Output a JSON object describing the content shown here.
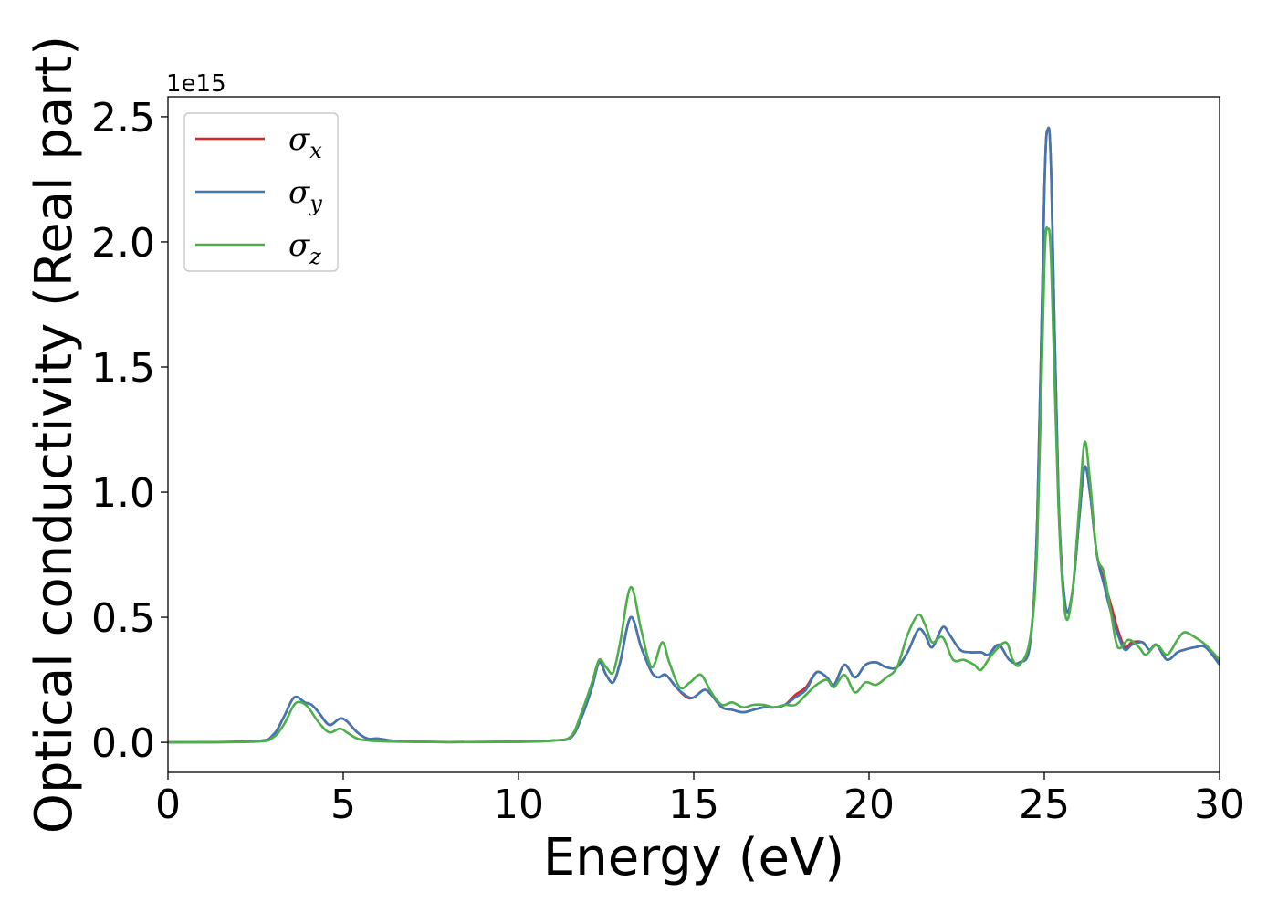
{
  "chart_data": {
    "type": "line",
    "xlabel": "Energy (eV)",
    "ylabel": "Optical conductivity (Real part)",
    "y_offset_label": "1e15",
    "xlim": [
      0,
      30
    ],
    "ylim": [
      -0.12,
      2.58
    ],
    "x_ticks": [
      0,
      5,
      10,
      15,
      20,
      25,
      30
    ],
    "x_tick_labels": [
      "0",
      "5",
      "10",
      "15",
      "20",
      "25",
      "30"
    ],
    "y_ticks": [
      0.0,
      0.5,
      1.0,
      1.5,
      2.0,
      2.5
    ],
    "y_tick_labels": [
      "0.0",
      "0.5",
      "1.0",
      "1.5",
      "2.0",
      "2.5"
    ],
    "grid": false,
    "legend_position": "upper-left",
    "series": [
      {
        "name": "σx",
        "symbol": "σ",
        "subscript": "x",
        "color": "#d62728",
        "points": [
          [
            0,
            0
          ],
          [
            2.5,
            0.005
          ],
          [
            3.0,
            0.03
          ],
          [
            3.3,
            0.1
          ],
          [
            3.6,
            0.18
          ],
          [
            3.9,
            0.16
          ],
          [
            4.1,
            0.15
          ],
          [
            4.3,
            0.12
          ],
          [
            4.6,
            0.07
          ],
          [
            4.9,
            0.095
          ],
          [
            5.1,
            0.085
          ],
          [
            5.4,
            0.04
          ],
          [
            5.7,
            0.015
          ],
          [
            6.0,
            0.015
          ],
          [
            6.5,
            0.005
          ],
          [
            7,
            0.003
          ],
          [
            8,
            0.001
          ],
          [
            10,
            0.003
          ],
          [
            11,
            0.008
          ],
          [
            11.5,
            0.02
          ],
          [
            11.8,
            0.1
          ],
          [
            12.1,
            0.22
          ],
          [
            12.3,
            0.32
          ],
          [
            12.5,
            0.27
          ],
          [
            12.7,
            0.24
          ],
          [
            12.9,
            0.32
          ],
          [
            13.2,
            0.5
          ],
          [
            13.5,
            0.38
          ],
          [
            13.8,
            0.28
          ],
          [
            14.0,
            0.26
          ],
          [
            14.2,
            0.27
          ],
          [
            14.5,
            0.22
          ],
          [
            14.8,
            0.18
          ],
          [
            15.0,
            0.18
          ],
          [
            15.3,
            0.21
          ],
          [
            15.5,
            0.19
          ],
          [
            15.8,
            0.14
          ],
          [
            16.1,
            0.13
          ],
          [
            16.4,
            0.12
          ],
          [
            16.7,
            0.13
          ],
          [
            17.0,
            0.14
          ],
          [
            17.3,
            0.14
          ],
          [
            17.6,
            0.15
          ],
          [
            17.9,
            0.19
          ],
          [
            18.2,
            0.22
          ],
          [
            18.5,
            0.28
          ],
          [
            18.8,
            0.26
          ],
          [
            19.0,
            0.23
          ],
          [
            19.3,
            0.31
          ],
          [
            19.6,
            0.26
          ],
          [
            19.9,
            0.31
          ],
          [
            20.2,
            0.32
          ],
          [
            20.5,
            0.3
          ],
          [
            20.8,
            0.3
          ],
          [
            21.1,
            0.36
          ],
          [
            21.4,
            0.45
          ],
          [
            21.6,
            0.43
          ],
          [
            21.8,
            0.38
          ],
          [
            22.1,
            0.46
          ],
          [
            22.3,
            0.43
          ],
          [
            22.6,
            0.37
          ],
          [
            22.9,
            0.36
          ],
          [
            23.2,
            0.36
          ],
          [
            23.4,
            0.35
          ],
          [
            23.7,
            0.39
          ],
          [
            24.0,
            0.33
          ],
          [
            24.3,
            0.32
          ],
          [
            24.6,
            0.4
          ],
          [
            24.8,
            0.9
          ],
          [
            25.0,
            2.2
          ],
          [
            25.1,
            2.45
          ],
          [
            25.2,
            2.25
          ],
          [
            25.4,
            1.0
          ],
          [
            25.6,
            0.55
          ],
          [
            25.8,
            0.6
          ],
          [
            26.0,
            0.9
          ],
          [
            26.15,
            1.1
          ],
          [
            26.3,
            1.0
          ],
          [
            26.5,
            0.75
          ],
          [
            26.7,
            0.65
          ],
          [
            26.9,
            0.55
          ],
          [
            27.1,
            0.45
          ],
          [
            27.3,
            0.38
          ],
          [
            27.5,
            0.4
          ],
          [
            27.8,
            0.4
          ],
          [
            28.0,
            0.37
          ],
          [
            28.2,
            0.39
          ],
          [
            28.5,
            0.33
          ],
          [
            28.8,
            0.36
          ],
          [
            29.0,
            0.37
          ],
          [
            29.3,
            0.38
          ],
          [
            29.6,
            0.38
          ],
          [
            30.0,
            0.32
          ]
        ]
      },
      {
        "name": "σy",
        "symbol": "σ",
        "subscript": "y",
        "color": "#3f77b2",
        "points": [
          [
            0,
            0
          ],
          [
            2.5,
            0.005
          ],
          [
            3.0,
            0.03
          ],
          [
            3.3,
            0.1
          ],
          [
            3.6,
            0.18
          ],
          [
            3.9,
            0.16
          ],
          [
            4.1,
            0.15
          ],
          [
            4.3,
            0.12
          ],
          [
            4.6,
            0.07
          ],
          [
            4.9,
            0.095
          ],
          [
            5.1,
            0.085
          ],
          [
            5.4,
            0.04
          ],
          [
            5.7,
            0.015
          ],
          [
            6.0,
            0.015
          ],
          [
            6.5,
            0.005
          ],
          [
            7,
            0.003
          ],
          [
            8,
            0.001
          ],
          [
            10,
            0.003
          ],
          [
            11,
            0.008
          ],
          [
            11.5,
            0.02
          ],
          [
            11.8,
            0.1
          ],
          [
            12.1,
            0.22
          ],
          [
            12.3,
            0.32
          ],
          [
            12.5,
            0.27
          ],
          [
            12.7,
            0.24
          ],
          [
            12.9,
            0.32
          ],
          [
            13.2,
            0.5
          ],
          [
            13.5,
            0.38
          ],
          [
            13.8,
            0.28
          ],
          [
            14.0,
            0.26
          ],
          [
            14.2,
            0.27
          ],
          [
            14.5,
            0.22
          ],
          [
            14.8,
            0.185
          ],
          [
            15.0,
            0.18
          ],
          [
            15.3,
            0.21
          ],
          [
            15.5,
            0.19
          ],
          [
            15.8,
            0.14
          ],
          [
            16.1,
            0.13
          ],
          [
            16.4,
            0.12
          ],
          [
            16.7,
            0.13
          ],
          [
            17.0,
            0.14
          ],
          [
            17.3,
            0.14
          ],
          [
            17.6,
            0.15
          ],
          [
            17.9,
            0.18
          ],
          [
            18.2,
            0.21
          ],
          [
            18.5,
            0.28
          ],
          [
            18.8,
            0.26
          ],
          [
            19.0,
            0.23
          ],
          [
            19.3,
            0.31
          ],
          [
            19.6,
            0.26
          ],
          [
            19.9,
            0.31
          ],
          [
            20.2,
            0.32
          ],
          [
            20.5,
            0.3
          ],
          [
            20.8,
            0.3
          ],
          [
            21.1,
            0.36
          ],
          [
            21.4,
            0.45
          ],
          [
            21.6,
            0.43
          ],
          [
            21.8,
            0.38
          ],
          [
            22.1,
            0.46
          ],
          [
            22.3,
            0.43
          ],
          [
            22.6,
            0.37
          ],
          [
            22.9,
            0.36
          ],
          [
            23.2,
            0.36
          ],
          [
            23.4,
            0.35
          ],
          [
            23.7,
            0.39
          ],
          [
            24.0,
            0.33
          ],
          [
            24.3,
            0.32
          ],
          [
            24.6,
            0.4
          ],
          [
            24.8,
            0.9
          ],
          [
            25.0,
            2.2
          ],
          [
            25.1,
            2.45
          ],
          [
            25.2,
            2.25
          ],
          [
            25.4,
            1.0
          ],
          [
            25.6,
            0.55
          ],
          [
            25.8,
            0.6
          ],
          [
            26.0,
            0.9
          ],
          [
            26.15,
            1.1
          ],
          [
            26.3,
            1.0
          ],
          [
            26.5,
            0.75
          ],
          [
            26.7,
            0.63
          ],
          [
            26.9,
            0.52
          ],
          [
            27.1,
            0.43
          ],
          [
            27.3,
            0.37
          ],
          [
            27.5,
            0.39
          ],
          [
            27.8,
            0.4
          ],
          [
            28.0,
            0.37
          ],
          [
            28.2,
            0.39
          ],
          [
            28.5,
            0.33
          ],
          [
            28.8,
            0.36
          ],
          [
            29.0,
            0.37
          ],
          [
            29.3,
            0.38
          ],
          [
            29.6,
            0.38
          ],
          [
            30.0,
            0.31
          ]
        ]
      },
      {
        "name": "σz",
        "symbol": "σ",
        "subscript": "z",
        "color": "#4daf4a",
        "points": [
          [
            0,
            0
          ],
          [
            2.5,
            0.003
          ],
          [
            3.0,
            0.02
          ],
          [
            3.3,
            0.07
          ],
          [
            3.6,
            0.15
          ],
          [
            3.8,
            0.16
          ],
          [
            4.0,
            0.14
          ],
          [
            4.3,
            0.08
          ],
          [
            4.6,
            0.04
          ],
          [
            4.9,
            0.055
          ],
          [
            5.1,
            0.04
          ],
          [
            5.4,
            0.015
          ],
          [
            5.7,
            0.008
          ],
          [
            6.0,
            0.005
          ],
          [
            6.5,
            0.003
          ],
          [
            7,
            0.002
          ],
          [
            8,
            0.001
          ],
          [
            10,
            0.002
          ],
          [
            11,
            0.007
          ],
          [
            11.5,
            0.025
          ],
          [
            11.8,
            0.12
          ],
          [
            12.1,
            0.24
          ],
          [
            12.3,
            0.33
          ],
          [
            12.5,
            0.3
          ],
          [
            12.7,
            0.28
          ],
          [
            12.9,
            0.4
          ],
          [
            13.2,
            0.62
          ],
          [
            13.5,
            0.45
          ],
          [
            13.8,
            0.3
          ],
          [
            14.1,
            0.4
          ],
          [
            14.3,
            0.32
          ],
          [
            14.6,
            0.22
          ],
          [
            14.9,
            0.24
          ],
          [
            15.2,
            0.27
          ],
          [
            15.5,
            0.2
          ],
          [
            15.8,
            0.15
          ],
          [
            16.1,
            0.16
          ],
          [
            16.4,
            0.14
          ],
          [
            16.7,
            0.15
          ],
          [
            17.0,
            0.15
          ],
          [
            17.3,
            0.14
          ],
          [
            17.6,
            0.15
          ],
          [
            17.9,
            0.15
          ],
          [
            18.2,
            0.19
          ],
          [
            18.5,
            0.23
          ],
          [
            18.8,
            0.25
          ],
          [
            19.0,
            0.22
          ],
          [
            19.3,
            0.27
          ],
          [
            19.6,
            0.2
          ],
          [
            19.9,
            0.24
          ],
          [
            20.2,
            0.23
          ],
          [
            20.5,
            0.26
          ],
          [
            20.8,
            0.3
          ],
          [
            21.1,
            0.43
          ],
          [
            21.4,
            0.51
          ],
          [
            21.6,
            0.47
          ],
          [
            21.8,
            0.4
          ],
          [
            22.1,
            0.42
          ],
          [
            22.4,
            0.33
          ],
          [
            22.7,
            0.33
          ],
          [
            23.0,
            0.31
          ],
          [
            23.2,
            0.29
          ],
          [
            23.5,
            0.35
          ],
          [
            23.9,
            0.4
          ],
          [
            24.1,
            0.33
          ],
          [
            24.3,
            0.31
          ],
          [
            24.6,
            0.42
          ],
          [
            24.8,
            0.8
          ],
          [
            25.0,
            1.9
          ],
          [
            25.1,
            2.05
          ],
          [
            25.2,
            1.9
          ],
          [
            25.4,
            0.95
          ],
          [
            25.6,
            0.51
          ],
          [
            25.8,
            0.6
          ],
          [
            26.0,
            0.95
          ],
          [
            26.15,
            1.2
          ],
          [
            26.3,
            1.05
          ],
          [
            26.5,
            0.75
          ],
          [
            26.7,
            0.68
          ],
          [
            26.9,
            0.52
          ],
          [
            27.1,
            0.38
          ],
          [
            27.4,
            0.41
          ],
          [
            27.7,
            0.38
          ],
          [
            27.9,
            0.35
          ],
          [
            28.2,
            0.39
          ],
          [
            28.5,
            0.35
          ],
          [
            28.8,
            0.41
          ],
          [
            29.0,
            0.44
          ],
          [
            29.3,
            0.42
          ],
          [
            29.6,
            0.39
          ],
          [
            30.0,
            0.33
          ]
        ]
      }
    ]
  }
}
